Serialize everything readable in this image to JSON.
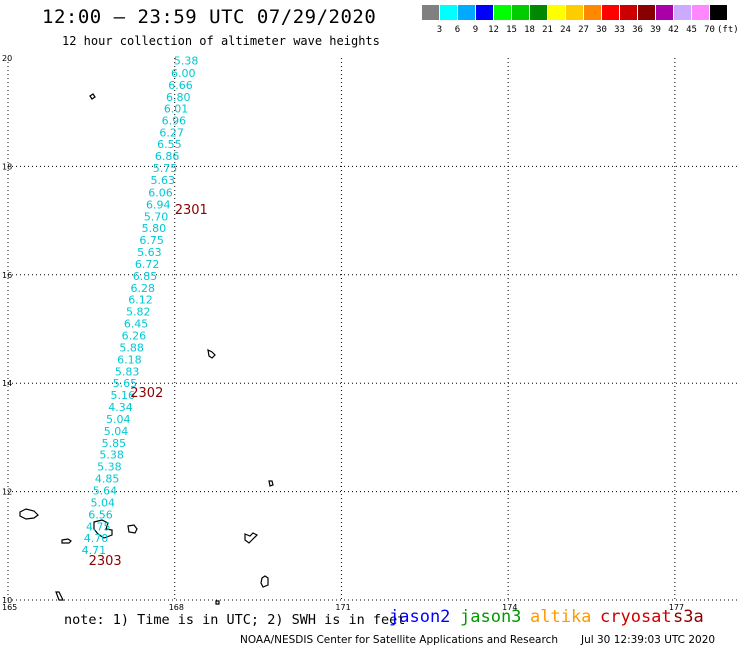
{
  "header": {
    "title": "12:00 – 23:59 UTC 07/29/2020",
    "subtitle": "12 hour collection of altimeter wave heights"
  },
  "colorbar": {
    "unit": "(ft)",
    "bins": [
      {
        "label": "3",
        "color": "#808080"
      },
      {
        "label": "6",
        "color": "#00ffff"
      },
      {
        "label": "9",
        "color": "#00aaff"
      },
      {
        "label": "12",
        "color": "#0000ff"
      },
      {
        "label": "15",
        "color": "#00ff00"
      },
      {
        "label": "18",
        "color": "#00cc00"
      },
      {
        "label": "21",
        "color": "#008800"
      },
      {
        "label": "24",
        "color": "#ffff00"
      },
      {
        "label": "27",
        "color": "#ffcc00"
      },
      {
        "label": "30",
        "color": "#ff8800"
      },
      {
        "label": "33",
        "color": "#ff0000"
      },
      {
        "label": "36",
        "color": "#cc0000"
      },
      {
        "label": "39",
        "color": "#880000"
      },
      {
        "label": "42",
        "color": "#aa00aa"
      },
      {
        "label": "45",
        "color": "#ccaaff"
      },
      {
        "label": "70",
        "color": "#ff88ff"
      },
      {
        "label": "",
        "color": "#000000"
      }
    ]
  },
  "map": {
    "lon_range": [
      165,
      179
    ],
    "lat_range": [
      10,
      20
    ],
    "lon_labels": [
      "165",
      "168",
      "171",
      "174",
      "177"
    ],
    "lat_labels": [
      "20",
      "18",
      "16",
      "14",
      "12",
      "10"
    ],
    "track": {
      "color": "#00ffff",
      "points": [
        {
          "lon": 168.2,
          "lat": 19.95,
          "swh": "5.38"
        },
        {
          "lon": 168.15,
          "lat": 19.72,
          "swh": "6.00"
        },
        {
          "lon": 168.1,
          "lat": 19.5,
          "swh": "6.66"
        },
        {
          "lon": 168.06,
          "lat": 19.28,
          "swh": "6.80"
        },
        {
          "lon": 168.02,
          "lat": 19.07,
          "swh": "6.01"
        },
        {
          "lon": 167.98,
          "lat": 18.85,
          "swh": "6.96"
        },
        {
          "lon": 167.94,
          "lat": 18.63,
          "swh": "6.27"
        },
        {
          "lon": 167.9,
          "lat": 18.41,
          "swh": "6.55"
        },
        {
          "lon": 167.86,
          "lat": 18.19,
          "swh": "6.86"
        },
        {
          "lon": 167.82,
          "lat": 17.97,
          "swh": "5.75"
        },
        {
          "lon": 167.78,
          "lat": 17.75,
          "swh": "5.63"
        },
        {
          "lon": 167.74,
          "lat": 17.52,
          "swh": "6.06"
        },
        {
          "lon": 167.7,
          "lat": 17.3,
          "swh": "6.94"
        },
        {
          "lon": 167.66,
          "lat": 17.08,
          "swh": "5.70"
        },
        {
          "lon": 167.62,
          "lat": 16.86,
          "swh": "5.80"
        },
        {
          "lon": 167.58,
          "lat": 16.64,
          "swh": "6.75"
        },
        {
          "lon": 167.54,
          "lat": 16.42,
          "swh": "5.63"
        },
        {
          "lon": 167.5,
          "lat": 16.2,
          "swh": "6.72"
        },
        {
          "lon": 167.46,
          "lat": 15.98,
          "swh": "6.85"
        },
        {
          "lon": 167.42,
          "lat": 15.76,
          "swh": "6.28"
        },
        {
          "lon": 167.38,
          "lat": 15.54,
          "swh": "6.12"
        },
        {
          "lon": 167.34,
          "lat": 15.32,
          "swh": "5.82"
        },
        {
          "lon": 167.3,
          "lat": 15.1,
          "swh": "6.45"
        },
        {
          "lon": 167.26,
          "lat": 14.88,
          "swh": "6.26"
        },
        {
          "lon": 167.22,
          "lat": 14.66,
          "swh": "5.88"
        },
        {
          "lon": 167.18,
          "lat": 14.44,
          "swh": "6.18"
        },
        {
          "lon": 167.14,
          "lat": 14.22,
          "swh": "5.83"
        },
        {
          "lon": 167.1,
          "lat": 14.0,
          "swh": "5.65"
        },
        {
          "lon": 167.06,
          "lat": 13.78,
          "swh": "5.16"
        },
        {
          "lon": 167.02,
          "lat": 13.56,
          "swh": "4.34"
        },
        {
          "lon": 166.98,
          "lat": 13.34,
          "swh": "5.04"
        },
        {
          "lon": 166.94,
          "lat": 13.12,
          "swh": "5.04"
        },
        {
          "lon": 166.9,
          "lat": 12.9,
          "swh": "5.85"
        },
        {
          "lon": 166.86,
          "lat": 12.68,
          "swh": "5.38"
        },
        {
          "lon": 166.82,
          "lat": 12.46,
          "swh": "5.38"
        },
        {
          "lon": 166.78,
          "lat": 12.24,
          "swh": "4.85"
        },
        {
          "lon": 166.74,
          "lat": 12.02,
          "swh": "5.64"
        },
        {
          "lon": 166.7,
          "lat": 11.8,
          "swh": "5.04"
        },
        {
          "lon": 166.66,
          "lat": 11.58,
          "swh": "6.56"
        },
        {
          "lon": 166.62,
          "lat": 11.36,
          "swh": "4.75"
        },
        {
          "lon": 166.58,
          "lat": 11.14,
          "swh": "4.70"
        },
        {
          "lon": 166.54,
          "lat": 10.92,
          "swh": "4.71"
        }
      ]
    },
    "pass_labels": [
      {
        "text": "2301",
        "lon": 168.0,
        "lat": 17.12
      },
      {
        "text": "2302",
        "lon": 167.2,
        "lat": 13.75
      },
      {
        "text": "2303",
        "lon": 166.45,
        "lat": 10.65
      }
    ]
  },
  "footer": {
    "note": "note: 1) Time is in UTC; 2) SWH is in feet",
    "satellites": [
      {
        "name": "jason2",
        "color": "#0000ff"
      },
      {
        "name": "jason3",
        "color": "#009900"
      },
      {
        "name": "altika",
        "color": "#ff9900"
      },
      {
        "name": "cryosat",
        "color": "#cc0000"
      },
      {
        "name": "s3a",
        "color": "#8b0000"
      }
    ],
    "credit": "NOAA/NESDIS Center for Satellite Applications and Research",
    "timestamp": "Jul 30 12:39:03 UTC 2020"
  }
}
